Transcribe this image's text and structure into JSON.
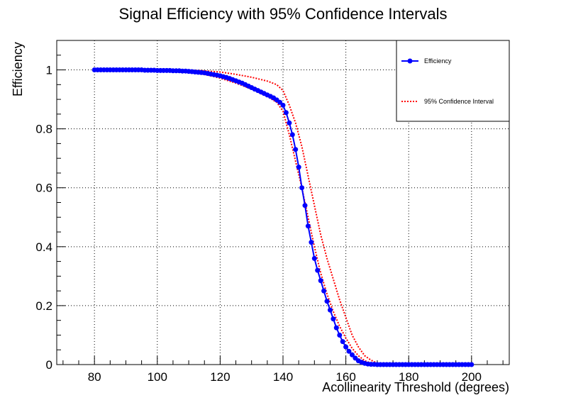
{
  "chart_data": {
    "type": "line",
    "title": "Signal Efficiency with 95% Confidence Intervals",
    "xlabel": "Acollinearity Threshold (degrees)",
    "ylabel": "Efficiency",
    "xlim": [
      68,
      212
    ],
    "ylim": [
      0,
      1.1
    ],
    "x_ticks": [
      80,
      100,
      120,
      140,
      160,
      180,
      200
    ],
    "y_ticks": [
      0,
      0.2,
      0.4,
      0.6,
      0.8,
      1
    ],
    "x_tick_labels": [
      "80",
      "100",
      "120",
      "140",
      "160",
      "180",
      "200"
    ],
    "y_tick_labels": [
      "0",
      "0.2",
      "0.4",
      "0.6",
      "0.8",
      "1"
    ],
    "grid": true,
    "legend_position": "top-right",
    "colors": {
      "efficiency": "#0000ff",
      "confidence": "#ff0000"
    },
    "series": [
      {
        "name": "Efficiency",
        "style": "line-markers",
        "x": [
          80,
          81,
          82,
          83,
          84,
          85,
          86,
          87,
          88,
          89,
          90,
          91,
          92,
          93,
          94,
          95,
          96,
          97,
          98,
          99,
          100,
          101,
          102,
          103,
          104,
          105,
          106,
          107,
          108,
          109,
          110,
          111,
          112,
          113,
          114,
          115,
          116,
          117,
          118,
          119,
          120,
          121,
          122,
          123,
          124,
          125,
          126,
          127,
          128,
          129,
          130,
          131,
          132,
          133,
          134,
          135,
          136,
          137,
          138,
          139,
          140,
          141,
          142,
          143,
          144,
          145,
          146,
          147,
          148,
          149,
          150,
          151,
          152,
          153,
          154,
          155,
          156,
          157,
          158,
          159,
          160,
          161,
          162,
          163,
          164,
          165,
          166,
          167,
          168,
          169,
          170,
          171,
          172,
          173,
          174,
          175,
          176,
          177,
          178,
          179,
          180,
          181,
          182,
          183,
          184,
          185,
          186,
          187,
          188,
          189,
          190,
          191,
          192,
          193,
          194,
          195,
          196,
          197,
          198,
          199,
          200
        ],
        "y": [
          1,
          1,
          1,
          1,
          1,
          1,
          1,
          1,
          1,
          1,
          1,
          1,
          1,
          1,
          1,
          1,
          0.999,
          0.999,
          0.999,
          0.999,
          0.998,
          0.998,
          0.998,
          0.998,
          0.998,
          0.997,
          0.997,
          0.997,
          0.996,
          0.996,
          0.995,
          0.994,
          0.993,
          0.992,
          0.991,
          0.99,
          0.988,
          0.986,
          0.984,
          0.982,
          0.98,
          0.977,
          0.974,
          0.971,
          0.967,
          0.963,
          0.959,
          0.955,
          0.95,
          0.945,
          0.94,
          0.935,
          0.93,
          0.925,
          0.92,
          0.915,
          0.91,
          0.905,
          0.898,
          0.89,
          0.88,
          0.855,
          0.82,
          0.78,
          0.73,
          0.67,
          0.6,
          0.54,
          0.47,
          0.415,
          0.36,
          0.32,
          0.285,
          0.25,
          0.215,
          0.185,
          0.155,
          0.125,
          0.1,
          0.078,
          0.06,
          0.045,
          0.033,
          0.022,
          0.013,
          0.008,
          0.004,
          0.002,
          0.001,
          0.001,
          0,
          0,
          0,
          0,
          0,
          0,
          0,
          0,
          0,
          0,
          0,
          0,
          0,
          0,
          0,
          0,
          0,
          0,
          0,
          0,
          0,
          0,
          0,
          0,
          0,
          0,
          0,
          0,
          0,
          0,
          0
        ]
      },
      {
        "name": "95% Confidence Interval",
        "style": "dotted",
        "upper": {
          "x": [
            80,
            100,
            110,
            115,
            120,
            125,
            130,
            135,
            138,
            140,
            142,
            144,
            146,
            148,
            150,
            152,
            154,
            156,
            158,
            160,
            162,
            164,
            166,
            168,
            170,
            172,
            175,
            180,
            190,
            200
          ],
          "y": [
            1,
            1,
            0.999,
            0.997,
            0.993,
            0.985,
            0.975,
            0.962,
            0.95,
            0.93,
            0.88,
            0.82,
            0.74,
            0.64,
            0.54,
            0.44,
            0.36,
            0.29,
            0.22,
            0.16,
            0.1,
            0.06,
            0.03,
            0.015,
            0.005,
            0.001,
            0,
            0,
            0,
            0
          ]
        },
        "lower": {
          "x": [
            80,
            100,
            110,
            115,
            120,
            125,
            130,
            135,
            138,
            140,
            142,
            144,
            146,
            148,
            150,
            152,
            154,
            156,
            158,
            160,
            162,
            164,
            166,
            168,
            170,
            172,
            175,
            180,
            190,
            200
          ],
          "y": [
            0.999,
            0.996,
            0.992,
            0.985,
            0.972,
            0.955,
            0.935,
            0.91,
            0.89,
            0.86,
            0.78,
            0.69,
            0.6,
            0.5,
            0.4,
            0.31,
            0.24,
            0.18,
            0.13,
            0.09,
            0.055,
            0.03,
            0.013,
            0.005,
            0.001,
            0,
            0,
            0,
            0,
            0
          ]
        }
      }
    ]
  }
}
